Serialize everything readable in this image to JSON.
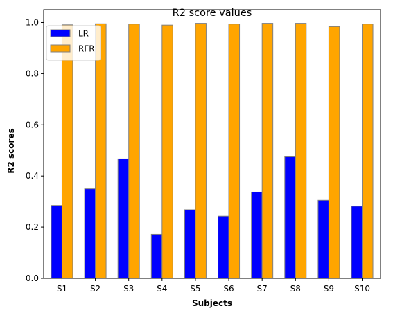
{
  "chart_data": {
    "type": "bar",
    "title": "R2 score values",
    "xlabel": "Subjects",
    "ylabel": "R2 scores",
    "categories": [
      "S1",
      "S2",
      "S3",
      "S4",
      "S5",
      "S6",
      "S7",
      "S8",
      "S9",
      "S10"
    ],
    "series": [
      {
        "name": "LR",
        "color": "#0000ff",
        "values": [
          0.285,
          0.35,
          0.467,
          0.172,
          0.268,
          0.243,
          0.337,
          0.475,
          0.305,
          0.282
        ]
      },
      {
        "name": "RFR",
        "color": "#ffa500",
        "values": [
          0.991,
          0.995,
          0.994,
          0.99,
          0.997,
          0.994,
          0.997,
          0.997,
          0.984,
          0.994
        ]
      }
    ],
    "ylim": [
      0,
      1.05
    ],
    "yticks": [
      "0.0",
      "0.2",
      "0.4",
      "0.6",
      "0.8",
      "1.0"
    ],
    "grid": false,
    "legend_position": "top-left",
    "bar_edge_color": "#808080"
  }
}
